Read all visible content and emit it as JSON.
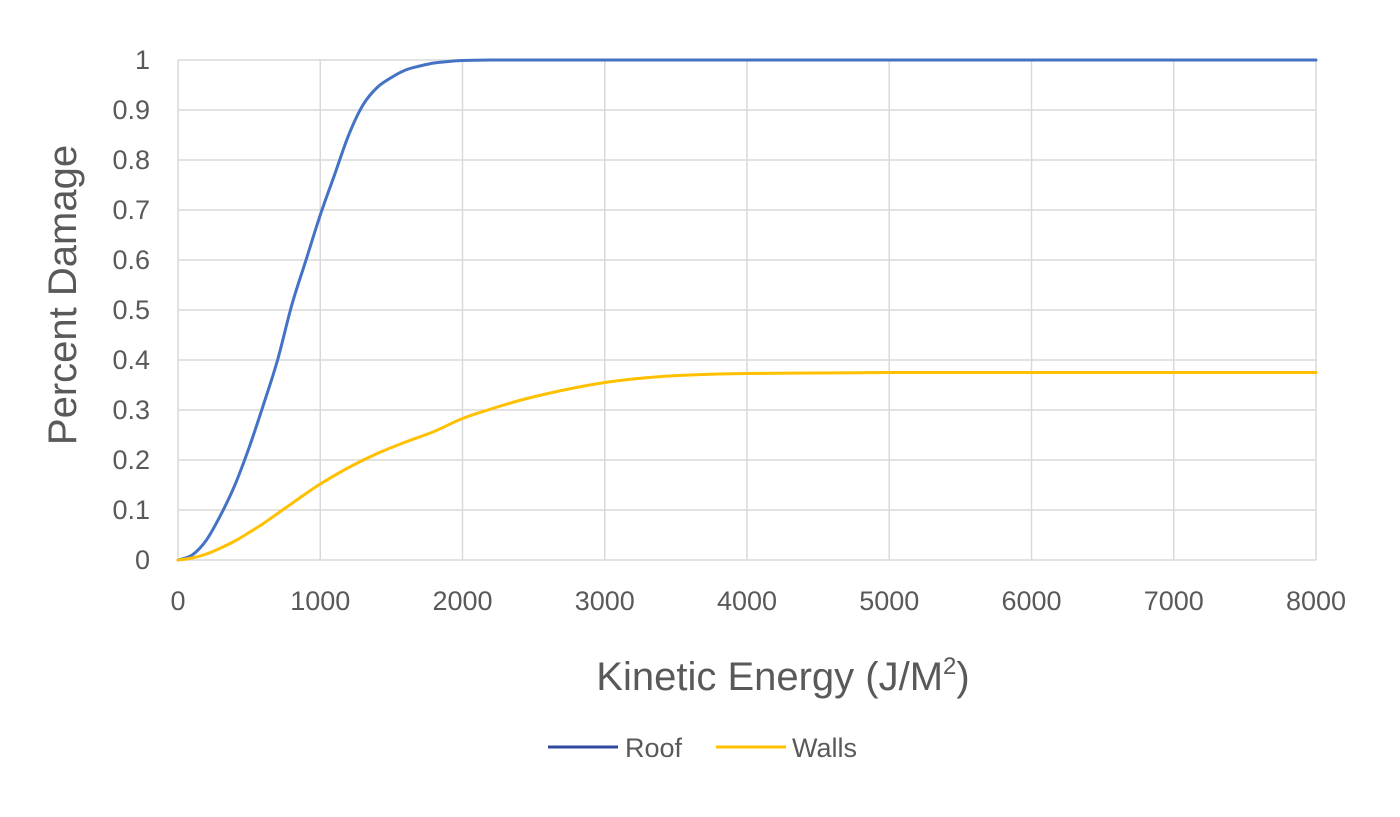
{
  "chart_data": {
    "type": "line",
    "title": "",
    "xlabel": "Kinetic Energy (J/M",
    "xlabel_superscript": "2",
    "xlabel_suffix": ")",
    "ylabel": "Percent Damage",
    "xlim": [
      0,
      8000
    ],
    "ylim": [
      0,
      1
    ],
    "x_ticks": [
      "0",
      "1000",
      "2000",
      "3000",
      "4000",
      "5000",
      "6000",
      "7000",
      "8000"
    ],
    "y_ticks": [
      "0",
      "0.1",
      "0.2",
      "0.3",
      "0.4",
      "0.5",
      "0.6",
      "0.7",
      "0.8",
      "0.9",
      "1"
    ],
    "grid": true,
    "legend_position": "bottom",
    "series": [
      {
        "name": "Roof",
        "color": "#4472C4",
        "legend_color": "#2F4A9C",
        "x": [
          0,
          100,
          200,
          300,
          400,
          500,
          600,
          700,
          800,
          900,
          1000,
          1100,
          1200,
          1300,
          1400,
          1500,
          1600,
          1700,
          1800,
          1900,
          2000,
          2200,
          2400,
          2600,
          3000,
          4000,
          5000,
          6000,
          7000,
          8000
        ],
        "y": [
          0,
          0.01,
          0.04,
          0.09,
          0.15,
          0.225,
          0.31,
          0.4,
          0.51,
          0.6,
          0.69,
          0.77,
          0.85,
          0.91,
          0.945,
          0.965,
          0.98,
          0.988,
          0.994,
          0.997,
          0.999,
          1,
          1,
          1,
          1,
          1,
          1,
          1,
          1,
          1
        ]
      },
      {
        "name": "Walls",
        "color": "#FFC000",
        "legend_color": "#FFC000",
        "x": [
          0,
          100,
          200,
          300,
          400,
          500,
          600,
          700,
          800,
          900,
          1000,
          1200,
          1400,
          1600,
          1800,
          2000,
          2200,
          2400,
          2600,
          2800,
          3000,
          3200,
          3400,
          3600,
          3800,
          4000,
          4500,
          5000,
          6000,
          7000,
          8000
        ],
        "y": [
          0,
          0.004,
          0.012,
          0.024,
          0.038,
          0.055,
          0.073,
          0.093,
          0.113,
          0.133,
          0.152,
          0.185,
          0.213,
          0.236,
          0.257,
          0.283,
          0.302,
          0.319,
          0.333,
          0.345,
          0.355,
          0.362,
          0.367,
          0.37,
          0.372,
          0.373,
          0.374,
          0.375,
          0.375,
          0.375,
          0.375
        ]
      }
    ]
  }
}
